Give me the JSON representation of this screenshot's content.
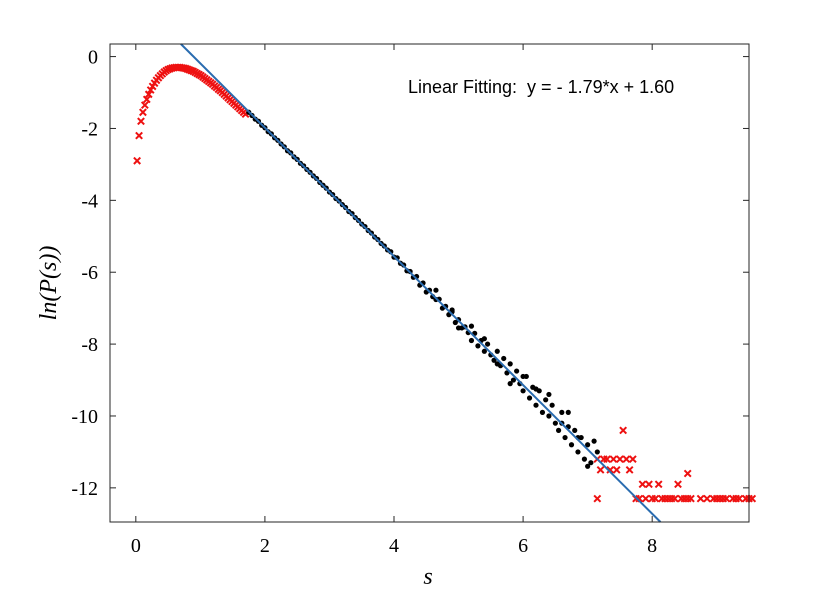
{
  "chart_data": {
    "type": "scatter",
    "title": "",
    "xlabel": "s",
    "ylabel": "ln(P(s))",
    "xlim": [
      -0.4,
      9.5
    ],
    "ylim": [
      -12.95,
      0.35
    ],
    "xticks": [
      0,
      2,
      4,
      6,
      8
    ],
    "yticks": [
      0,
      -2,
      -4,
      -6,
      -8,
      -10,
      -12
    ],
    "xtick_labels": [
      "0",
      "2",
      "4",
      "6",
      "8"
    ],
    "ytick_labels": [
      "0",
      "-2",
      "-4",
      "-6",
      "-8",
      "-10",
      "-12"
    ],
    "grid": false,
    "legend": "none",
    "annotation": "Linear Fitting:  y = - 1.79*x + 1.60",
    "fit_line": {
      "slope": -1.79,
      "intercept": 1.6,
      "color": "#2a6cb0"
    },
    "colors": {
      "excluded": "#ee1111",
      "fitted": "#000000"
    },
    "series": [
      {
        "marker": "x",
        "color": "#ee1111",
        "points": [
          [
            0.02,
            -2.9
          ],
          [
            0.05,
            -2.2
          ],
          [
            0.08,
            -1.8
          ],
          [
            0.11,
            -1.55
          ],
          [
            0.14,
            -1.35
          ],
          [
            0.17,
            -1.19
          ],
          [
            0.2,
            -1.05
          ],
          [
            0.23,
            -0.93
          ],
          [
            0.26,
            -0.83
          ],
          [
            0.29,
            -0.74
          ],
          [
            0.32,
            -0.66
          ],
          [
            0.35,
            -0.59
          ],
          [
            0.38,
            -0.53
          ],
          [
            0.41,
            -0.48
          ],
          [
            0.44,
            -0.43
          ],
          [
            0.47,
            -0.39
          ],
          [
            0.5,
            -0.36
          ],
          [
            0.53,
            -0.34
          ],
          [
            0.56,
            -0.32
          ],
          [
            0.59,
            -0.31
          ],
          [
            0.62,
            -0.3
          ],
          [
            0.65,
            -0.3
          ],
          [
            0.68,
            -0.3
          ],
          [
            0.71,
            -0.31
          ],
          [
            0.74,
            -0.32
          ],
          [
            0.77,
            -0.33
          ],
          [
            0.8,
            -0.35
          ],
          [
            0.83,
            -0.37
          ],
          [
            0.86,
            -0.39
          ],
          [
            0.89,
            -0.41
          ],
          [
            0.92,
            -0.44
          ],
          [
            0.95,
            -0.47
          ],
          [
            0.98,
            -0.5
          ],
          [
            1.01,
            -0.53
          ],
          [
            1.04,
            -0.57
          ],
          [
            1.07,
            -0.61
          ],
          [
            1.1,
            -0.65
          ],
          [
            1.13,
            -0.69
          ],
          [
            1.16,
            -0.73
          ],
          [
            1.19,
            -0.77
          ],
          [
            1.22,
            -0.82
          ],
          [
            1.25,
            -0.86
          ],
          [
            1.28,
            -0.91
          ],
          [
            1.31,
            -0.95
          ],
          [
            1.34,
            -1.0
          ],
          [
            1.37,
            -1.05
          ],
          [
            1.4,
            -1.1
          ],
          [
            1.43,
            -1.15
          ],
          [
            1.46,
            -1.2
          ],
          [
            1.49,
            -1.25
          ],
          [
            1.52,
            -1.3
          ],
          [
            1.55,
            -1.35
          ],
          [
            1.58,
            -1.4
          ],
          [
            1.61,
            -1.45
          ],
          [
            1.64,
            -1.5
          ],
          [
            1.67,
            -1.55
          ],
          [
            1.7,
            -1.6
          ],
          [
            7.15,
            -11.2
          ],
          [
            7.2,
            -11.5
          ],
          [
            7.25,
            -11.2
          ],
          [
            7.3,
            -11.2
          ],
          [
            7.35,
            -11.5
          ],
          [
            7.4,
            -11.2
          ],
          [
            7.45,
            -11.5
          ],
          [
            7.5,
            -11.2
          ],
          [
            7.55,
            -10.4
          ],
          [
            7.6,
            -11.2
          ],
          [
            7.65,
            -11.5
          ],
          [
            7.7,
            -11.2
          ],
          [
            7.85,
            -11.9
          ],
          [
            7.95,
            -11.9
          ],
          [
            8.1,
            -11.9
          ],
          [
            8.4,
            -11.9
          ],
          [
            8.55,
            -11.6
          ],
          [
            7.15,
            -12.3
          ],
          [
            7.75,
            -12.3
          ],
          [
            7.8,
            -12.3
          ],
          [
            7.9,
            -12.3
          ],
          [
            8.0,
            -12.3
          ],
          [
            8.05,
            -12.3
          ],
          [
            8.15,
            -12.3
          ],
          [
            8.2,
            -12.3
          ],
          [
            8.25,
            -12.3
          ],
          [
            8.3,
            -12.3
          ],
          [
            8.35,
            -12.3
          ],
          [
            8.45,
            -12.3
          ],
          [
            8.5,
            -12.3
          ],
          [
            8.55,
            -12.3
          ],
          [
            8.6,
            -12.3
          ],
          [
            8.75,
            -12.3
          ],
          [
            8.85,
            -12.3
          ],
          [
            8.95,
            -12.3
          ],
          [
            9.0,
            -12.3
          ],
          [
            9.05,
            -12.3
          ],
          [
            9.15,
            -12.3
          ],
          [
            9.25,
            -12.3
          ],
          [
            9.3,
            -12.3
          ],
          [
            9.35,
            -12.3
          ],
          [
            9.45,
            -12.3
          ],
          [
            9.5,
            -12.3
          ],
          [
            9.55,
            -12.3
          ],
          [
            9.1,
            -12.3
          ]
        ]
      },
      {
        "marker": "dot",
        "color": "#000000",
        "points": [
          [
            1.75,
            -1.55
          ],
          [
            1.8,
            -1.64
          ],
          [
            1.85,
            -1.74
          ],
          [
            1.9,
            -1.8
          ],
          [
            1.95,
            -1.91
          ],
          [
            2.0,
            -1.98
          ],
          [
            2.05,
            -2.09
          ],
          [
            2.1,
            -2.15
          ],
          [
            2.15,
            -2.26
          ],
          [
            2.2,
            -2.33
          ],
          [
            2.25,
            -2.43
          ],
          [
            2.3,
            -2.51
          ],
          [
            2.35,
            -2.62
          ],
          [
            2.4,
            -2.68
          ],
          [
            2.45,
            -2.79
          ],
          [
            2.5,
            -2.86
          ],
          [
            2.55,
            -2.97
          ],
          [
            2.6,
            -3.04
          ],
          [
            2.65,
            -3.14
          ],
          [
            2.7,
            -3.22
          ],
          [
            2.75,
            -3.32
          ],
          [
            2.8,
            -3.39
          ],
          [
            2.85,
            -3.5
          ],
          [
            2.9,
            -3.58
          ],
          [
            2.95,
            -3.66
          ],
          [
            3.0,
            -3.77
          ],
          [
            3.05,
            -3.84
          ],
          [
            3.1,
            -3.95
          ],
          [
            3.15,
            -4.02
          ],
          [
            3.2,
            -4.12
          ],
          [
            3.25,
            -4.2
          ],
          [
            3.3,
            -4.31
          ],
          [
            3.35,
            -4.37
          ],
          [
            3.4,
            -4.48
          ],
          [
            3.45,
            -4.56
          ],
          [
            3.5,
            -4.66
          ],
          [
            3.55,
            -4.73
          ],
          [
            3.6,
            -4.84
          ],
          [
            3.65,
            -4.91
          ],
          [
            3.7,
            -5.02
          ],
          [
            3.75,
            -5.09
          ],
          [
            3.8,
            -5.2
          ],
          [
            3.85,
            -5.27
          ],
          [
            3.9,
            -5.38
          ],
          [
            3.95,
            -5.43
          ],
          [
            4.0,
            -5.58
          ],
          [
            4.05,
            -5.6
          ],
          [
            4.1,
            -5.75
          ],
          [
            4.15,
            -5.8
          ],
          [
            4.2,
            -5.96
          ],
          [
            4.25,
            -5.98
          ],
          [
            4.3,
            -6.14
          ],
          [
            4.35,
            -6.12
          ],
          [
            4.4,
            -6.36
          ],
          [
            4.45,
            -6.3
          ],
          [
            4.5,
            -6.55
          ],
          [
            4.55,
            -6.5
          ],
          [
            4.6,
            -6.68
          ],
          [
            4.65,
            -6.76
          ],
          [
            4.7,
            -6.75
          ],
          [
            4.75,
            -7.0
          ],
          [
            4.8,
            -6.95
          ],
          [
            4.85,
            -7.18
          ],
          [
            4.9,
            -7.1
          ],
          [
            4.95,
            -7.4
          ],
          [
            5.0,
            -7.32
          ],
          [
            5.05,
            -7.55
          ],
          [
            5.1,
            -7.52
          ],
          [
            5.15,
            -7.68
          ],
          [
            5.2,
            -7.9
          ],
          [
            5.25,
            -7.7
          ],
          [
            5.3,
            -8.05
          ],
          [
            5.35,
            -7.9
          ],
          [
            5.4,
            -8.2
          ],
          [
            5.45,
            -8.0
          ],
          [
            5.5,
            -8.3
          ],
          [
            5.55,
            -8.45
          ],
          [
            5.6,
            -8.2
          ],
          [
            5.65,
            -8.6
          ],
          [
            5.7,
            -8.4
          ],
          [
            5.75,
            -8.8
          ],
          [
            5.8,
            -8.55
          ],
          [
            5.85,
            -9.0
          ],
          [
            5.9,
            -8.75
          ],
          [
            5.95,
            -9.1
          ],
          [
            6.0,
            -9.3
          ],
          [
            6.05,
            -8.9
          ],
          [
            6.1,
            -9.5
          ],
          [
            6.15,
            -9.2
          ],
          [
            6.2,
            -9.7
          ],
          [
            6.25,
            -9.3
          ],
          [
            6.3,
            -9.9
          ],
          [
            6.35,
            -9.55
          ],
          [
            6.4,
            -10.0
          ],
          [
            6.45,
            -9.7
          ],
          [
            6.5,
            -10.2
          ],
          [
            6.55,
            -10.4
          ],
          [
            6.6,
            -9.9
          ],
          [
            6.65,
            -10.6
          ],
          [
            6.7,
            -10.3
          ],
          [
            6.75,
            -10.8
          ],
          [
            6.8,
            -10.4
          ],
          [
            6.85,
            -11.0
          ],
          [
            6.9,
            -10.6
          ],
          [
            6.95,
            -11.2
          ],
          [
            7.0,
            -10.8
          ],
          [
            7.05,
            -11.3
          ],
          [
            7.1,
            -10.7
          ],
          [
            4.65,
            -6.5
          ],
          [
            4.9,
            -7.05
          ],
          [
            5.0,
            -7.55
          ],
          [
            5.2,
            -7.5
          ],
          [
            5.4,
            -7.85
          ],
          [
            5.6,
            -8.55
          ],
          [
            5.8,
            -9.1
          ],
          [
            6.0,
            -8.9
          ],
          [
            6.2,
            -9.25
          ],
          [
            6.4,
            -9.4
          ],
          [
            6.6,
            -10.2
          ],
          [
            6.7,
            -9.9
          ],
          [
            6.85,
            -10.6
          ],
          [
            7.0,
            -11.4
          ],
          [
            7.15,
            -11.0
          ]
        ]
      }
    ]
  }
}
